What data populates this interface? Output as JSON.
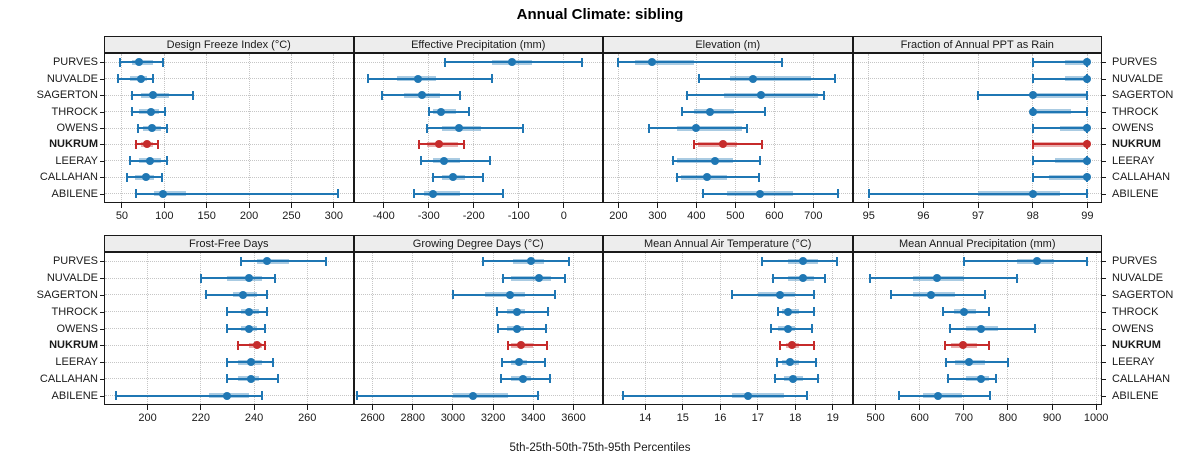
{
  "title": "Annual Climate: sibling",
  "caption": "5th-25th-50th-75th-95th Percentiles",
  "stations": [
    "PURVES",
    "NUVALDE",
    "SAGERTON",
    "THROCK",
    "OWENS",
    "NUKRUM",
    "LEERAY",
    "CALLAHAN",
    "ABILENE"
  ],
  "highlight_station": "NUKRUM",
  "colors": {
    "normal": "#1f77b4",
    "normal_band": "rgba(31,119,180,0.38)",
    "highlight": "#c62b2b",
    "highlight_band": "rgba(198,43,43,0.38)",
    "grid": "#c6c6c6",
    "header_bg": "#ededed",
    "border": "#1a1a1a"
  },
  "chart_data": {
    "type": "dotplot-percentiles",
    "percentile_labels": [
      "5th",
      "25th",
      "50th",
      "75th",
      "95th"
    ],
    "legend": "values per station are [p5, p25, p50, p75, p95]",
    "panels": [
      {
        "label": "Design Freeze Index (°C)",
        "ticks": [
          50,
          100,
          150,
          200,
          250,
          300
        ],
        "domain": [
          30,
          322
        ],
        "rows": {
          "PURVES": [
            48,
            62,
            70,
            87,
            98
          ],
          "NUVALDE": [
            45,
            59,
            72,
            80,
            87
          ],
          "SAGERTON": [
            62,
            72,
            87,
            106,
            134
          ],
          "THROCK": [
            62,
            70,
            84,
            94,
            101
          ],
          "OWENS": [
            69,
            75,
            86,
            96,
            103
          ],
          "NUKRUM": [
            67,
            72,
            80,
            87,
            93
          ],
          "LEERAY": [
            59,
            70,
            83,
            96,
            103
          ],
          "CALLAHAN": [
            56,
            65,
            78,
            88,
            97
          ],
          "ABILENE": [
            67,
            88,
            99,
            125,
            305
          ]
        }
      },
      {
        "label": "Effective Precipitation (mm)",
        "ticks": [
          -400,
          -300,
          -200,
          -100,
          0
        ],
        "domain": [
          -465,
          85
        ],
        "rows": {
          "PURVES": [
            -265,
            -160,
            -115,
            -70,
            40
          ],
          "NUVALDE": [
            -435,
            -370,
            -325,
            -285,
            -160
          ],
          "SAGERTON": [
            -405,
            -355,
            -315,
            -275,
            -230
          ],
          "THROCK": [
            -300,
            -290,
            -272,
            -240,
            -210
          ],
          "OWENS": [
            -305,
            -270,
            -232,
            -185,
            -90
          ],
          "NUKRUM": [
            -322,
            -305,
            -277,
            -235,
            -222
          ],
          "LEERAY": [
            -318,
            -290,
            -267,
            -230,
            -165
          ],
          "CALLAHAN": [
            -290,
            -270,
            -247,
            -220,
            -180
          ],
          "ABILENE": [
            -332,
            -310,
            -290,
            -230,
            -135
          ]
        }
      },
      {
        "label": "Elevation (m)",
        "ticks": [
          200,
          300,
          400,
          500,
          600,
          700
        ],
        "domain": [
          163,
          798
        ],
        "rows": {
          "PURVES": [
            200,
            243,
            287,
            393,
            620
          ],
          "NUVALDE": [
            407,
            486,
            546,
            695,
            755
          ],
          "SAGERTON": [
            377,
            470,
            565,
            713,
            727
          ],
          "THROCK": [
            362,
            394,
            436,
            496,
            575
          ],
          "OWENS": [
            278,
            351,
            400,
            518,
            529
          ],
          "NUKRUM": [
            395,
            403,
            468,
            505,
            568
          ],
          "LEERAY": [
            341,
            350,
            449,
            494,
            564
          ],
          "CALLAHAN": [
            350,
            360,
            428,
            479,
            560
          ],
          "ABILENE": [
            417,
            479,
            562,
            649,
            763
          ]
        }
      },
      {
        "label": "Fraction of Annual PPT as Rain",
        "ticks": [
          95,
          96,
          97,
          98,
          99
        ],
        "domain": [
          94.72,
          99.25
        ],
        "rows": {
          "PURVES": [
            98,
            98.6,
            99,
            99,
            99
          ],
          "NUVALDE": [
            98,
            98.6,
            99,
            99,
            99
          ],
          "SAGERTON": [
            97,
            98,
            98,
            99,
            99
          ],
          "THROCK": [
            98,
            98,
            98,
            98.7,
            99
          ],
          "OWENS": [
            98,
            98.5,
            99,
            99,
            99
          ],
          "NUKRUM": [
            98,
            98,
            99,
            99,
            99
          ],
          "LEERAY": [
            98,
            98.4,
            99,
            99,
            99
          ],
          "CALLAHAN": [
            98,
            98.3,
            99,
            99,
            99
          ],
          "ABILENE": [
            95,
            97,
            98,
            98.5,
            99
          ]
        }
      },
      {
        "label": "Frost-Free Days",
        "ticks": [
          200,
          220,
          240,
          260
        ],
        "domain": [
          184,
          277
        ],
        "rows": {
          "PURVES": [
            235,
            241,
            245,
            253,
            267
          ],
          "NUVALDE": [
            220,
            230,
            238,
            243,
            248
          ],
          "SAGERTON": [
            222,
            232,
            236,
            241,
            245
          ],
          "THROCK": [
            230,
            235,
            238,
            242,
            245
          ],
          "OWENS": [
            230,
            235,
            238,
            241,
            244
          ],
          "NUKRUM": [
            234,
            238,
            241,
            243,
            244
          ],
          "LEERAY": [
            230,
            234,
            239,
            243,
            247
          ],
          "CALLAHAN": [
            230,
            234,
            239,
            242,
            249
          ],
          "ABILENE": [
            188,
            223,
            230,
            238,
            243
          ]
        }
      },
      {
        "label": "Growing Degree Days (°C)",
        "ticks": [
          2600,
          2800,
          3000,
          3200,
          3400,
          3600
        ],
        "domain": [
          2510,
          3742
        ],
        "rows": {
          "PURVES": [
            3150,
            3300,
            3390,
            3455,
            3580
          ],
          "NUVALDE": [
            3250,
            3290,
            3430,
            3490,
            3560
          ],
          "SAGERTON": [
            3000,
            3160,
            3285,
            3360,
            3510
          ],
          "THROCK": [
            3220,
            3270,
            3320,
            3360,
            3475
          ],
          "OWENS": [
            3225,
            3270,
            3320,
            3355,
            3465
          ],
          "NUKRUM": [
            3275,
            3290,
            3340,
            3400,
            3470
          ],
          "LEERAY": [
            3245,
            3290,
            3330,
            3370,
            3460
          ],
          "CALLAHAN": [
            3240,
            3290,
            3350,
            3390,
            3485
          ],
          "ABILENE": [
            2520,
            3000,
            3100,
            3275,
            3425
          ]
        }
      },
      {
        "label": "Mean Annual Air Temperature (°C)",
        "ticks": [
          14,
          15,
          16,
          17,
          18,
          19
        ],
        "domain": [
          12.9,
          19.5
        ],
        "rows": {
          "PURVES": [
            17.1,
            17.8,
            18.2,
            18.6,
            19.1
          ],
          "NUVALDE": [
            17.4,
            17.8,
            18.2,
            18.5,
            18.8
          ],
          "SAGERTON": [
            16.3,
            17.0,
            17.6,
            18.0,
            18.5
          ],
          "THROCK": [
            17.55,
            17.65,
            17.8,
            18.1,
            18.5
          ],
          "OWENS": [
            17.35,
            17.55,
            17.8,
            18.0,
            18.45
          ],
          "NUKRUM": [
            17.6,
            17.75,
            17.9,
            18.1,
            18.5
          ],
          "LEERAY": [
            17.5,
            17.65,
            17.85,
            18.1,
            18.55
          ],
          "CALLAHAN": [
            17.45,
            17.7,
            17.95,
            18.2,
            18.6
          ],
          "ABILENE": [
            13.4,
            16.3,
            16.75,
            17.7,
            18.3
          ]
        }
      },
      {
        "label": "Mean Annual Precipitation (mm)",
        "ticks": [
          500,
          600,
          700,
          800,
          900,
          1000
        ],
        "domain": [
          450,
          1011
        ],
        "rows": {
          "PURVES": [
            700,
            820,
            865,
            905,
            980
          ],
          "NUVALDE": [
            487,
            585,
            640,
            700,
            820
          ],
          "SAGERTON": [
            535,
            585,
            625,
            680,
            748
          ],
          "THROCK": [
            652,
            678,
            700,
            728,
            758
          ],
          "OWENS": [
            668,
            705,
            738,
            778,
            862
          ],
          "NUKRUM": [
            658,
            672,
            698,
            730,
            757
          ],
          "LEERAY": [
            660,
            680,
            712,
            748,
            800
          ],
          "CALLAHAN": [
            664,
            706,
            738,
            758,
            772
          ],
          "ABILENE": [
            553,
            608,
            642,
            695,
            760
          ]
        }
      }
    ]
  }
}
